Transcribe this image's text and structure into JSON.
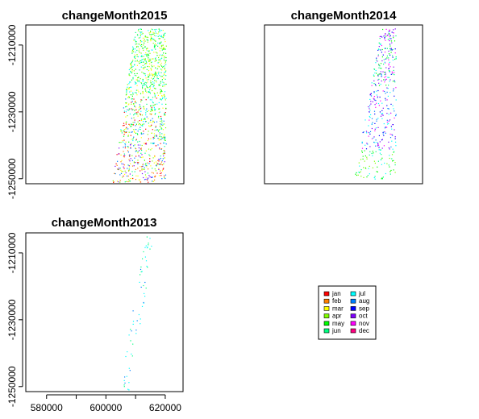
{
  "chart_data": [
    {
      "type": "scatter",
      "title": "changeMonth2015",
      "xlim": [
        573000,
        626000
      ],
      "ylim": [
        -1251500,
        -1204000
      ],
      "yticks": [
        -1210000,
        -1230000,
        -1250000
      ],
      "ytick_labels": [
        "-1210000",
        "-1230000",
        "-1250000"
      ],
      "xticks": [],
      "xtick_labels": []
    },
    {
      "type": "scatter",
      "title": "changeMonth2014",
      "xlim": [
        573000,
        626000
      ],
      "ylim": [
        -1251500,
        -1204000
      ],
      "yticks": [],
      "xticks": []
    },
    {
      "type": "scatter",
      "title": "changeMonth2013",
      "xlim": [
        573000,
        626000
      ],
      "ylim": [
        -1251500,
        -1204000
      ],
      "yticks": [
        -1210000,
        -1230000,
        -1250000
      ],
      "ytick_labels": [
        "-1210000",
        "-1230000",
        "-1250000"
      ],
      "xticks": [
        580000,
        590000,
        600000,
        610000,
        620000
      ],
      "xtick_labels": [
        "580000",
        "",
        "600000",
        "",
        "620000"
      ]
    }
  ],
  "legend": {
    "items": [
      {
        "label": "jan",
        "color": "#ff0000"
      },
      {
        "label": "feb",
        "color": "#ff8000"
      },
      {
        "label": "mar",
        "color": "#ffff00"
      },
      {
        "label": "apr",
        "color": "#80ff00"
      },
      {
        "label": "may",
        "color": "#00ff00"
      },
      {
        "label": "jun",
        "color": "#00ff80"
      },
      {
        "label": "jul",
        "color": "#00ffff"
      },
      {
        "label": "aug",
        "color": "#0080ff"
      },
      {
        "label": "sep",
        "color": "#0000ff"
      },
      {
        "label": "oct",
        "color": "#8000ff"
      },
      {
        "label": "nov",
        "color": "#ff00ff"
      },
      {
        "label": "dec",
        "color": "#ff0080"
      }
    ]
  }
}
